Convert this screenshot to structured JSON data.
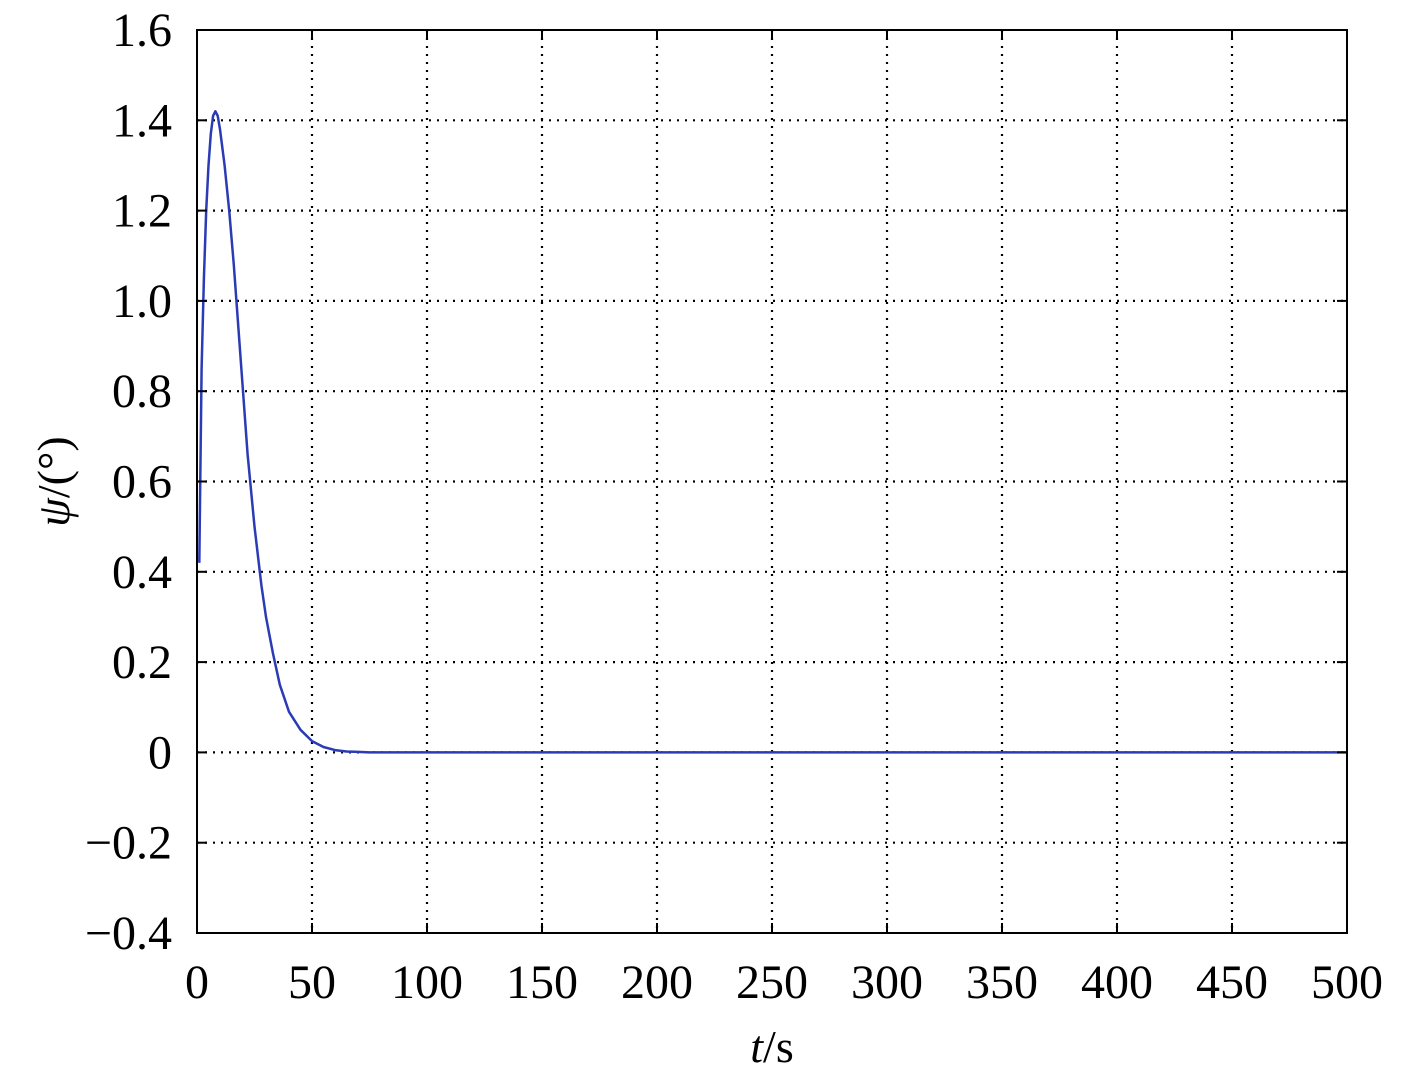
{
  "chart_data": {
    "type": "line",
    "title": "",
    "xlabel_var": "t",
    "xlabel_unit": "/s",
    "ylabel_var": "ψ",
    "ylabel_unit": "/(°)",
    "xlim": [
      0,
      500
    ],
    "ylim": [
      -0.4,
      1.6
    ],
    "xticks": [
      0,
      50,
      100,
      150,
      200,
      250,
      300,
      350,
      400,
      450,
      500
    ],
    "xtick_labels": [
      "0",
      "50",
      "100",
      "150",
      "200",
      "250",
      "300",
      "350",
      "400",
      "450",
      "500"
    ],
    "yticks": [
      -0.4,
      -0.2,
      0,
      0.2,
      0.4,
      0.6,
      0.8,
      1.0,
      1.2,
      1.4,
      1.6
    ],
    "ytick_labels": [
      "−0.4",
      "−0.2",
      "0",
      "0.2",
      "0.4",
      "0.6",
      "0.8",
      "1.0",
      "1.2",
      "1.4",
      "1.6"
    ],
    "grid": true,
    "colors": {
      "line": "#2b3bb5",
      "grid": "#000000",
      "axes": "#000000"
    },
    "series": [
      {
        "x": [
          1,
          2,
          3,
          4,
          5,
          6,
          7,
          8,
          9,
          10,
          12,
          14,
          16,
          18,
          20,
          22,
          25,
          28,
          30,
          33,
          36,
          40,
          45,
          50,
          55,
          60,
          65,
          70,
          75,
          80,
          100,
          150,
          200,
          250,
          300,
          350,
          400,
          450,
          500
        ],
        "y": [
          0.42,
          0.85,
          1.05,
          1.2,
          1.3,
          1.37,
          1.41,
          1.42,
          1.41,
          1.38,
          1.3,
          1.2,
          1.08,
          0.94,
          0.8,
          0.66,
          0.5,
          0.37,
          0.3,
          0.22,
          0.15,
          0.09,
          0.05,
          0.025,
          0.012,
          0.005,
          0.002,
          0.001,
          0.0,
          0.0,
          0.0,
          0.0,
          0.0,
          0.0,
          0.0,
          0.0,
          0.0,
          0.0,
          0.0
        ]
      }
    ]
  }
}
